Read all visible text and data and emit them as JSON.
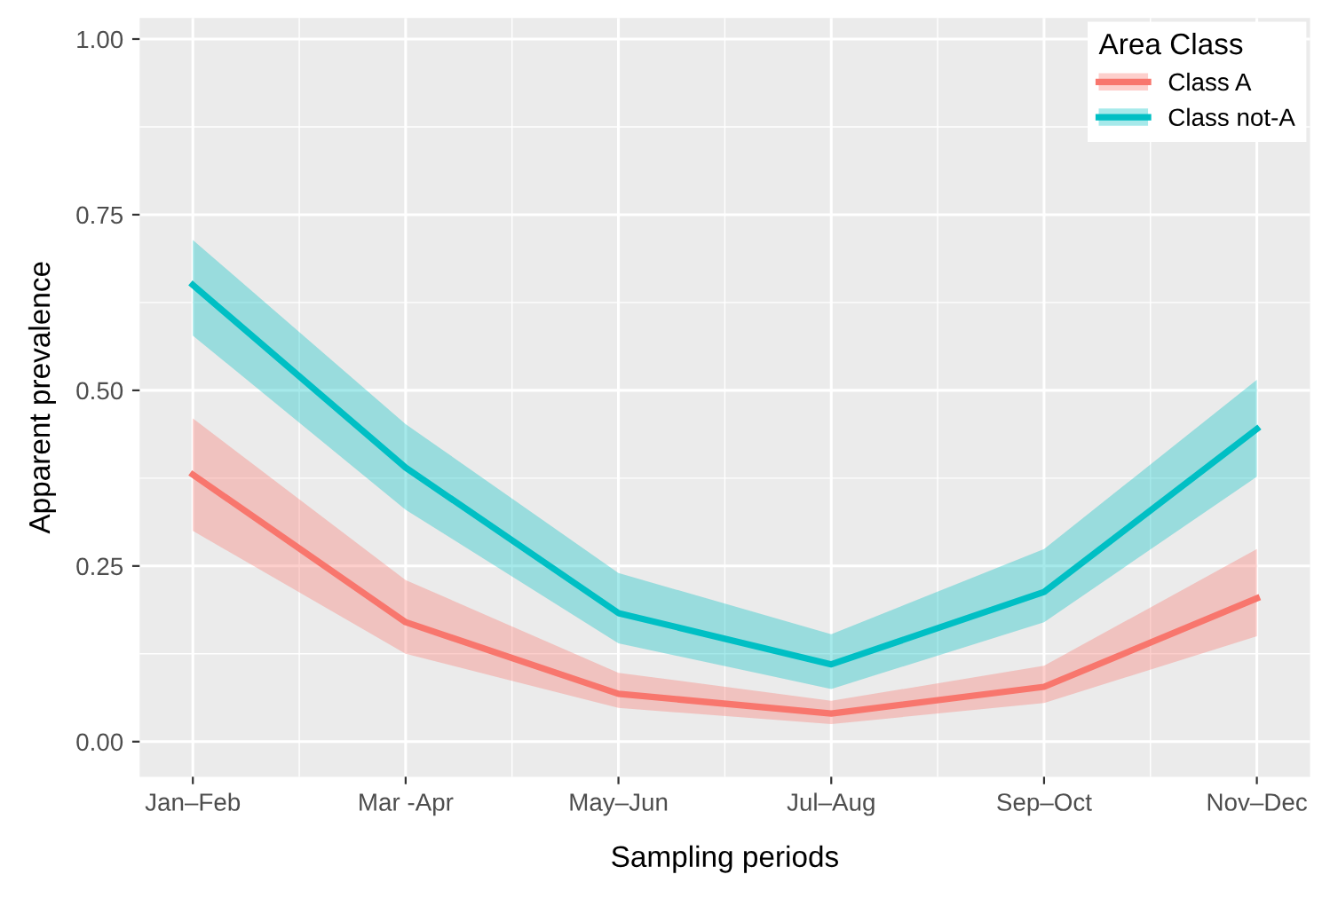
{
  "chart_data": {
    "type": "line",
    "xlabel": "Sampling periods",
    "ylabel": "Apparent prevalence",
    "legend_title": "Area Class",
    "categories": [
      "Jan–Feb",
      "Mar -Apr",
      "May–Jun",
      "Jul–Aug",
      "Sep–Oct",
      "Nov–Dec"
    ],
    "series": [
      {
        "name": "Class A",
        "color": "#f8766d",
        "values": [
          0.38,
          0.17,
          0.068,
          0.04,
          0.078,
          0.204
        ],
        "lower": [
          0.3,
          0.125,
          0.048,
          0.025,
          0.055,
          0.15
        ],
        "upper": [
          0.46,
          0.23,
          0.098,
          0.058,
          0.108,
          0.274
        ]
      },
      {
        "name": "Class not-A",
        "color": "#00bfc4",
        "values": [
          0.65,
          0.39,
          0.183,
          0.11,
          0.213,
          0.445
        ],
        "lower": [
          0.578,
          0.33,
          0.14,
          0.075,
          0.17,
          0.377
        ],
        "upper": [
          0.714,
          0.452,
          0.24,
          0.153,
          0.274,
          0.515
        ]
      }
    ],
    "ylim": [
      -0.05,
      1.03
    ],
    "yticks": [
      {
        "value": 0,
        "label": "0.00"
      },
      {
        "value": 0.25,
        "label": "0.25"
      },
      {
        "value": 0.5,
        "label": "0.50"
      },
      {
        "value": 0.75,
        "label": "0.75"
      },
      {
        "value": 1,
        "label": "1.00"
      }
    ],
    "grid": true,
    "legend": "top right",
    "marker": "none",
    "line_style": "solid"
  }
}
